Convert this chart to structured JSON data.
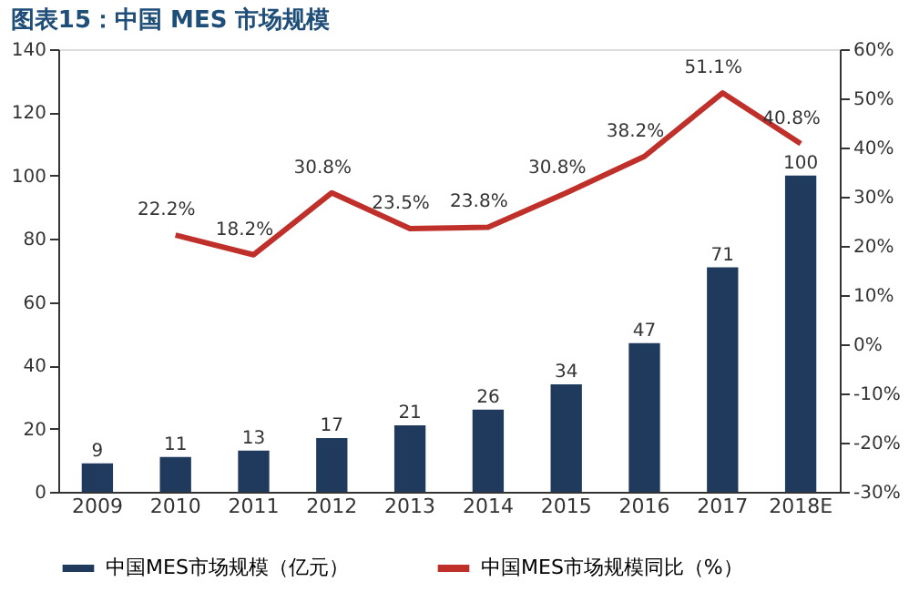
{
  "chart_data": {
    "type": "bar",
    "title": "图表15：中国 MES 市场规模",
    "categories": [
      "2009",
      "2010",
      "2011",
      "2012",
      "2013",
      "2014",
      "2015",
      "2016",
      "2017",
      "2018E"
    ],
    "series": [
      {
        "name": "中国MES市场规模（亿元）",
        "color": "#1f3a5c",
        "values": [
          9,
          11,
          13,
          17,
          21,
          26,
          34,
          47,
          71,
          100
        ]
      },
      {
        "name": "中国MES市场规模同比（%）",
        "type": "line",
        "axis": "y2",
        "color": "#c0302b",
        "values": [
          null,
          22.2,
          18.2,
          30.8,
          23.5,
          23.8,
          30.8,
          38.2,
          51.1,
          40.8
        ],
        "value_labels": [
          null,
          "22.2%",
          "18.2%",
          "30.8%",
          "23.5%",
          "23.8%",
          "30.8%",
          "38.2%",
          "51.1%",
          "40.8%"
        ]
      }
    ],
    "ylim": [
      0,
      140
    ],
    "yticks": [
      0,
      20,
      40,
      60,
      80,
      100,
      120,
      140
    ],
    "y2lim": [
      -30,
      60
    ],
    "y2ticks": [
      {
        "value": -30,
        "label": "-30%"
      },
      {
        "value": -20,
        "label": "-20%"
      },
      {
        "value": -10,
        "label": "-10%"
      },
      {
        "value": 0,
        "label": "0%"
      },
      {
        "value": 10,
        "label": "10%"
      },
      {
        "value": 20,
        "label": "20%"
      },
      {
        "value": 30,
        "label": "30%"
      },
      {
        "value": 40,
        "label": "40%"
      },
      {
        "value": 50,
        "label": "50%"
      },
      {
        "value": 60,
        "label": "60%"
      }
    ],
    "data_labels": true,
    "legend": "bottom",
    "grid": false
  }
}
